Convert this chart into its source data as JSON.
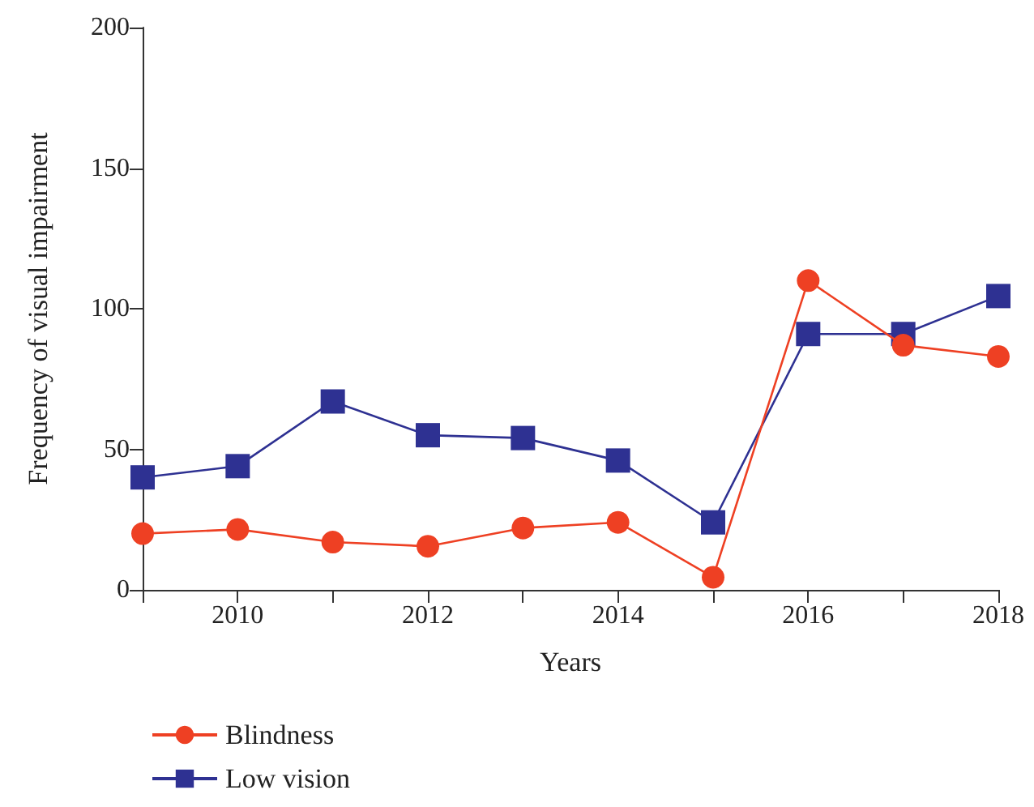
{
  "chart_data": {
    "type": "line",
    "xlabel": "Years",
    "ylabel": "Frequency of visual impairment",
    "x": [
      2009,
      2010,
      2011,
      2012,
      2013,
      2014,
      2015,
      2016,
      2017,
      2018
    ],
    "series": [
      {
        "name": "Blindness",
        "color": "#ee4023",
        "marker": "circle",
        "values": [
          20,
          21.5,
          17,
          15.5,
          22,
          24,
          4.5,
          110,
          87,
          83
        ]
      },
      {
        "name": "Low vision",
        "color": "#2e3192",
        "marker": "square",
        "values": [
          40,
          44,
          67,
          55,
          54,
          46,
          24,
          91,
          91,
          104.5
        ]
      }
    ],
    "xlim": [
      2009,
      2018
    ],
    "xticks": [
      {
        "value": 2009,
        "label": null
      },
      2010,
      {
        "value": 2011,
        "label": null
      },
      2012,
      {
        "value": 2013,
        "label": null
      },
      2014,
      {
        "value": 2015,
        "label": null
      },
      2016,
      {
        "value": 2017,
        "label": null
      },
      2018
    ],
    "ylim": [
      0,
      200
    ],
    "yticks": [
      0,
      50,
      100,
      150,
      200
    ],
    "grid": false,
    "legend": "bottom left",
    "line_style": "solid"
  }
}
